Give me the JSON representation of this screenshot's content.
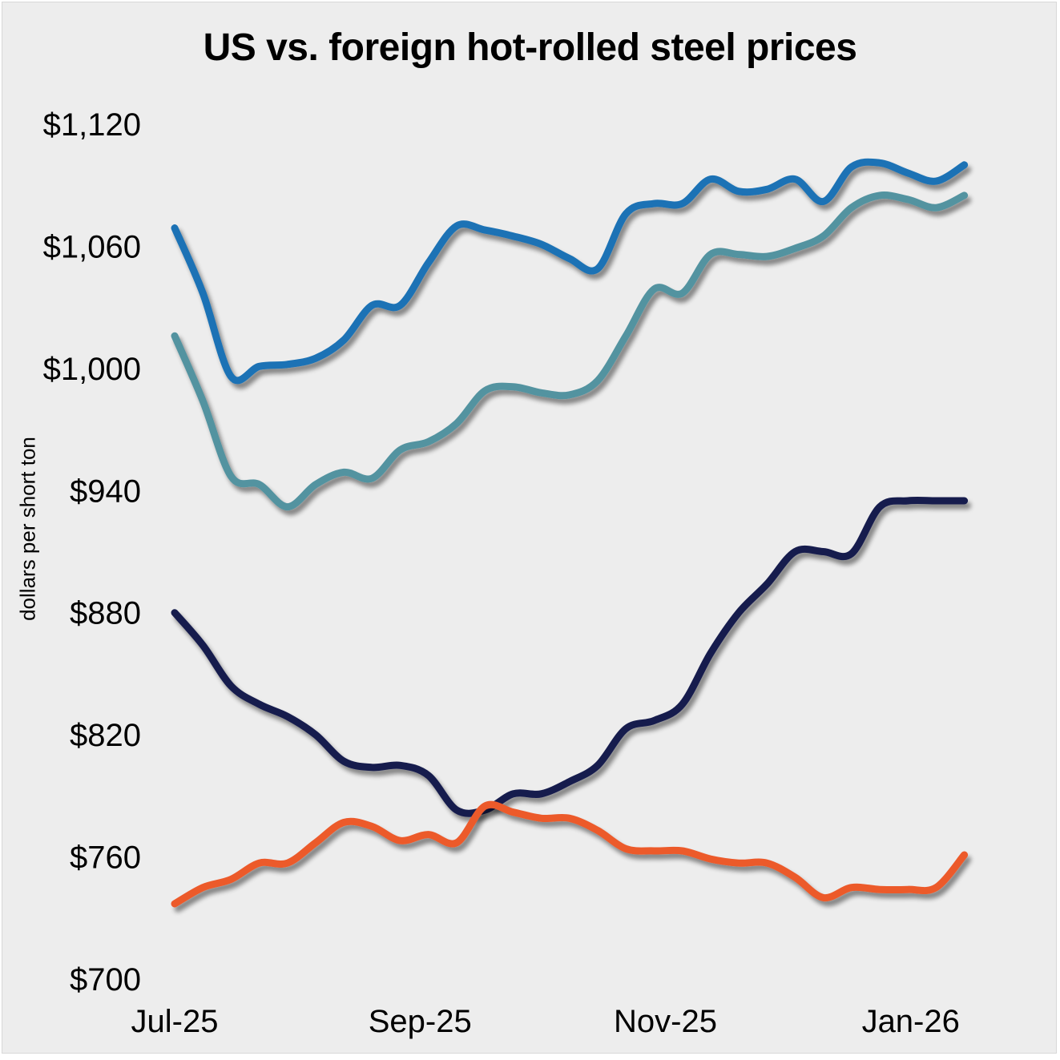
{
  "chart_data": {
    "type": "line",
    "title": "US vs. foreign hot-rolled steel prices",
    "xlabel": "",
    "ylabel": "dollars per short ton",
    "ylim": [
      700,
      1120
    ],
    "yticks": [
      700,
      760,
      820,
      880,
      940,
      1000,
      1060,
      1120
    ],
    "ytick_labels": [
      "$700",
      "$760",
      "$820",
      "$880",
      "$940",
      "$1,000",
      "$1,060",
      "$1,120"
    ],
    "xtick_labels": [
      "Jul-25",
      "Sep-25",
      "Nov-25",
      "Jan-26"
    ],
    "xtick_positions_weeks": [
      0,
      17.4,
      34.8,
      52.2
    ],
    "x_weeks": [
      0,
      2,
      4,
      6,
      8,
      10,
      12,
      14,
      16,
      18,
      20,
      22,
      24,
      26,
      28,
      30,
      32,
      34,
      36,
      38,
      40,
      42,
      44,
      46,
      48,
      50,
      52,
      54,
      56
    ],
    "grid": false,
    "legend": "none",
    "series": [
      {
        "name": "series-blue",
        "color": "#1a72b5",
        "values": [
          1069,
          1037,
          996,
          1001,
          1002,
          1005,
          1014,
          1031,
          1031,
          1052,
          1070,
          1068,
          1065,
          1061,
          1054,
          1049,
          1076,
          1081,
          1081,
          1093,
          1087,
          1088,
          1093,
          1082,
          1099,
          1101,
          1096,
          1092,
          1100
        ]
      },
      {
        "name": "series-teal",
        "color": "#5393a0",
        "values": [
          1016,
          984,
          947,
          943,
          932,
          943,
          949,
          946,
          960,
          964,
          973,
          989,
          991,
          988,
          987,
          994,
          1016,
          1039,
          1037,
          1056,
          1056,
          1055,
          1059,
          1065,
          1079,
          1085,
          1083,
          1079,
          1085
        ]
      },
      {
        "name": "series-navy",
        "color": "#171c4d",
        "values": [
          880,
          864,
          844,
          835,
          829,
          820,
          807,
          804,
          805,
          800,
          783,
          783,
          791,
          791,
          797,
          805,
          823,
          827,
          835,
          860,
          880,
          894,
          910,
          910,
          909,
          932,
          935,
          935,
          935
        ]
      },
      {
        "name": "series-orange",
        "color": "#ec5a2c",
        "values": [
          737,
          745,
          749,
          757,
          757,
          767,
          777,
          775,
          768,
          771,
          767,
          785,
          782,
          779,
          779,
          773,
          764,
          763,
          763,
          759,
          757,
          757,
          750,
          740,
          745,
          744,
          744,
          745,
          761
        ]
      }
    ]
  }
}
